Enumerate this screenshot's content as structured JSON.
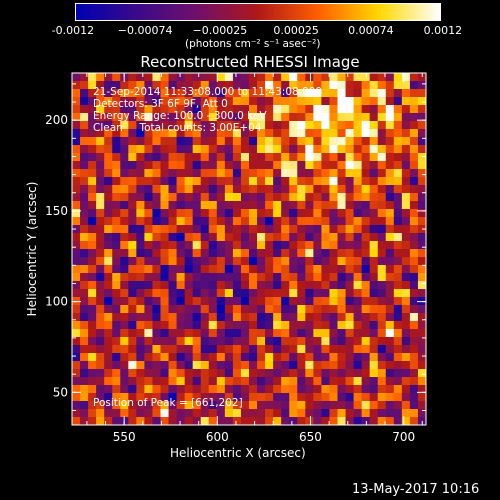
{
  "chart_data": {
    "type": "heatmap",
    "title": "Reconstructed RHESSI Image",
    "xlabel": "Heliocentric X (arcsec)",
    "ylabel": "Heliocentric Y (arcsec)",
    "xlim": [
      522,
      712
    ],
    "ylim": [
      32,
      226
    ],
    "x_ticks": [
      550,
      600,
      650,
      700
    ],
    "y_ticks": [
      50,
      100,
      150,
      200
    ],
    "colorbar": {
      "label": "(photons cm⁻² s⁻¹ asec⁻²)",
      "range": [
        -0.0012,
        0.0012
      ],
      "tick_values": [
        -0.0012,
        -0.00074,
        -0.00025,
        0.00025,
        0.00074,
        0.0012
      ],
      "tick_labels": [
        "-0.0012",
        "−0.00074",
        "−0.00025",
        "0.00025",
        "0.00074",
        "0.0012"
      ],
      "colors": [
        "#0000b4",
        "#3a0a88",
        "#70106a",
        "#b01818",
        "#ff6000",
        "#ffd800",
        "#ffffff"
      ]
    },
    "annotations": [
      "21-Sep-2014 11:33:08.000 to 11:43:08.000",
      "Detectors: 3F 6F 9F, Att 0",
      "Energy Range: 100.0 - 300.0 keV",
      "Clean     Total counts: 3.00E+04"
    ],
    "peak_label": "Position of Peak = [661,202]",
    "peak": [
      661,
      202
    ],
    "grid": false
  },
  "timestamp": "13-May-2017 10:16"
}
